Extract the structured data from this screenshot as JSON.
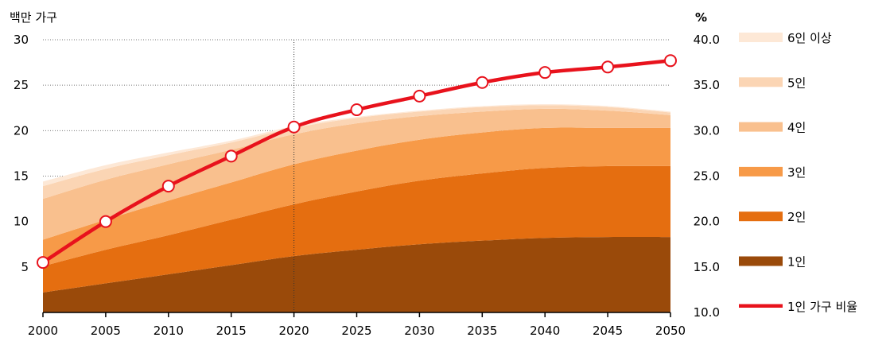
{
  "chart_data": {
    "type": "area",
    "y_left_label": "백만 가구",
    "y_right_label": "%",
    "x": [
      2000,
      2005,
      2010,
      2015,
      2020,
      2025,
      2030,
      2035,
      2040,
      2045,
      2050
    ],
    "x_ticks": [
      "2000",
      "2005",
      "2010",
      "2015",
      "2020",
      "2025",
      "2030",
      "2035",
      "2040",
      "2045",
      "2050"
    ],
    "y_left_range": [
      0,
      30
    ],
    "y_left_ticks": [
      5,
      10,
      15,
      20,
      25,
      30
    ],
    "y_left_tick_labels": [
      "5",
      "10",
      "15",
      "20",
      "25",
      "30"
    ],
    "y_right_range": [
      10,
      40
    ],
    "y_right_ticks": [
      10,
      15,
      20,
      25,
      30,
      35,
      40
    ],
    "y_right_tick_labels": [
      "10.0",
      "15.0",
      "20.0",
      "25.0",
      "30.0",
      "35.0",
      "40.0"
    ],
    "reference_line_x": 2020,
    "grid": "horizontal dotted",
    "legend_position": "right",
    "series": [
      {
        "name": "1인",
        "color": "#9a4a0a",
        "values": [
          2.2,
          3.2,
          4.2,
          5.2,
          6.2,
          6.9,
          7.5,
          7.9,
          8.2,
          8.3,
          8.3
        ]
      },
      {
        "name": "2인",
        "color": "#e56e10",
        "values": [
          2.9,
          3.7,
          4.3,
          5.0,
          5.7,
          6.4,
          7.0,
          7.4,
          7.7,
          7.8,
          7.8
        ]
      },
      {
        "name": "3인",
        "color": "#f79a48",
        "values": [
          2.9,
          3.3,
          3.8,
          4.1,
          4.4,
          4.5,
          4.5,
          4.5,
          4.4,
          4.2,
          4.2
        ]
      },
      {
        "name": "4인",
        "color": "#f9c08e",
        "values": [
          4.5,
          4.4,
          4.0,
          3.6,
          3.3,
          3.0,
          2.6,
          2.3,
          2.1,
          1.9,
          1.4
        ]
      },
      {
        "name": "5인",
        "color": "#fbd5b4",
        "values": [
          1.4,
          1.2,
          1.0,
          0.8,
          0.7,
          0.6,
          0.5,
          0.5,
          0.4,
          0.4,
          0.3
        ]
      },
      {
        "name": "6인 이상",
        "color": "#fde8d6",
        "values": [
          0.5,
          0.4,
          0.3,
          0.2,
          0.2,
          0.1,
          0.1,
          0.1,
          0.1,
          0.1,
          0.1
        ]
      }
    ],
    "line_series": {
      "name": "1인 가구 비율",
      "axis": "right",
      "color": "#e8121c",
      "values": [
        15.5,
        20.0,
        23.9,
        27.2,
        30.4,
        32.3,
        33.8,
        35.3,
        36.4,
        37.0,
        37.7
      ]
    },
    "legend": [
      {
        "label": "6인 이상",
        "color": "#fde8d6",
        "kind": "area"
      },
      {
        "label": "5인",
        "color": "#fbd5b4",
        "kind": "area"
      },
      {
        "label": "4인",
        "color": "#f9c08e",
        "kind": "area"
      },
      {
        "label": "3인",
        "color": "#f79a48",
        "kind": "area"
      },
      {
        "label": "2인",
        "color": "#e56e10",
        "kind": "area"
      },
      {
        "label": "1인",
        "color": "#9a4a0a",
        "kind": "area"
      },
      {
        "label": "1인 가구 비율",
        "color": "#e8121c",
        "kind": "line"
      }
    ]
  }
}
